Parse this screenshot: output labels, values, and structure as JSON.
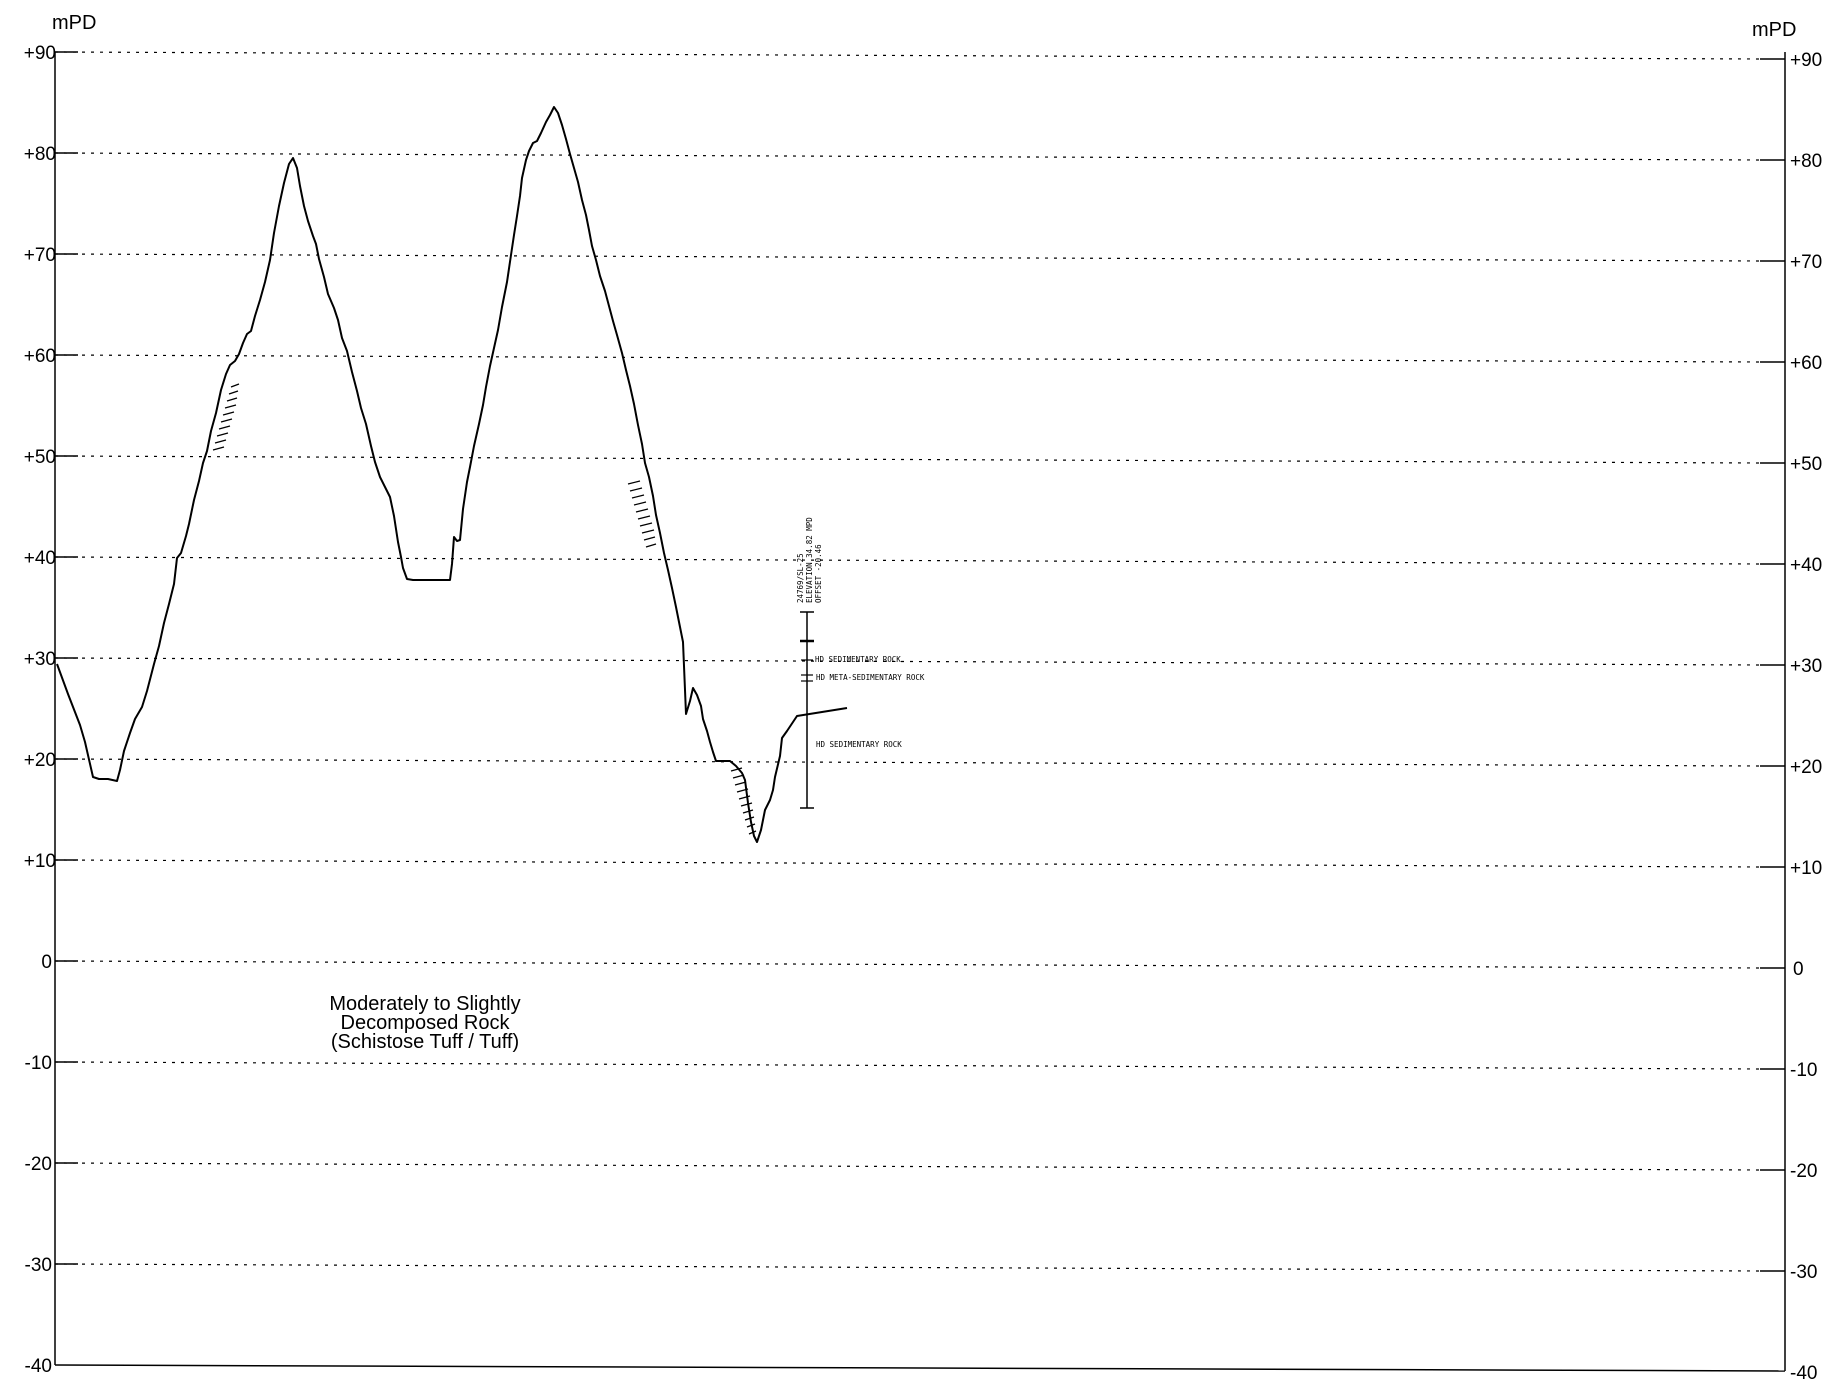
{
  "axes": {
    "left_unit": "mPD",
    "right_unit": "mPD",
    "left_ticks": [
      "+90",
      "+80",
      "+70",
      "+60",
      "+50",
      "+40",
      "+30",
      "+20",
      "+10",
      "0",
      "-10",
      "-20",
      "-30",
      "-40"
    ],
    "right_ticks": [
      "+90",
      "+80",
      "+70",
      "+60",
      "+50",
      "+40",
      "+30",
      "+20",
      "+10",
      "0",
      "-10",
      "-20",
      "-30",
      "-40"
    ]
  },
  "annotation": {
    "line1": "Moderately to Slightly",
    "line2": "Decomposed Rock",
    "line3": "(Schistose Tuff / Tuff)"
  },
  "borehole": {
    "id": "24769/SL-25",
    "elevation": "ELEVATION 34.82 MPD",
    "offset": "OFFSET -20.46",
    "layers": [
      "HD SEDIMENTARY ROCK",
      "HD META-SEDIMENTARY ROCK",
      "HD SEDIMENTARY ROCK"
    ]
  }
}
